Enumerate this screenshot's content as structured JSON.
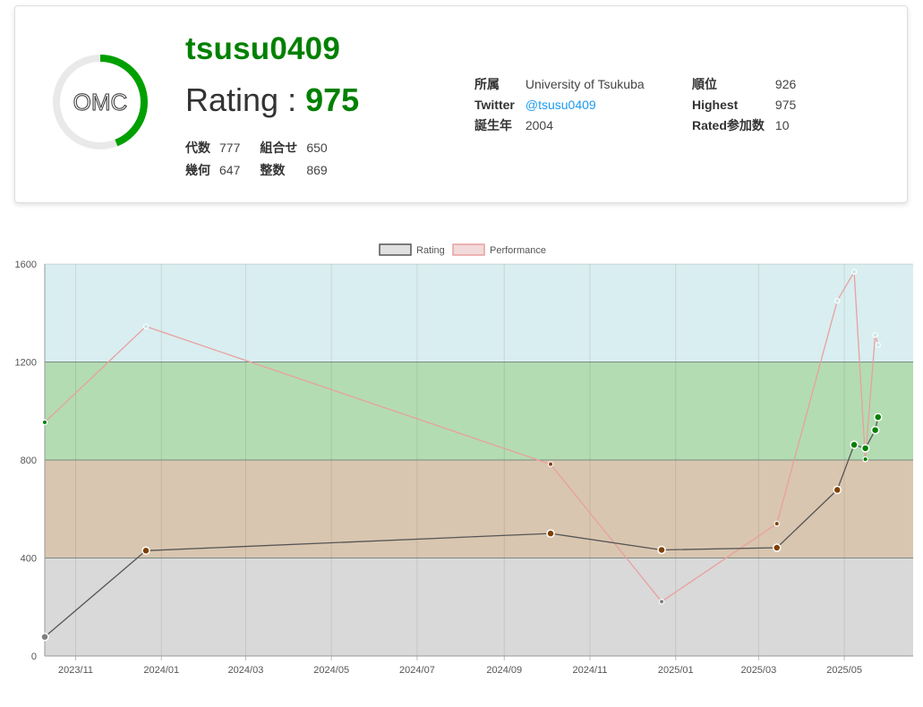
{
  "profile": {
    "username": "tsusu0409",
    "rating_label": "Rating : ",
    "rating_value": "975",
    "logo_text": "OMC",
    "ring_progress": 0.44,
    "ring_color": "#00a000",
    "name_color": "#008000",
    "scores": [
      {
        "label": "代数",
        "value": "777"
      },
      {
        "label": "組合せ",
        "value": "650"
      },
      {
        "label": "幾何",
        "value": "647"
      },
      {
        "label": "整数",
        "value": "869"
      }
    ],
    "info": {
      "affiliation_label": "所属",
      "affiliation": "University of Tsukuba",
      "twitter_label": "Twitter",
      "twitter": "@tsusu0409",
      "birth_label": "誕生年",
      "birth": "2004",
      "rank_label": "順位",
      "rank": "926",
      "highest_label": "Highest",
      "highest": "975",
      "rated_label": "Rated参加数",
      "rated": "10"
    }
  },
  "chart_data": {
    "type": "line",
    "legend": {
      "position": "top",
      "items": [
        "Rating",
        "Performance"
      ]
    },
    "ylim": [
      0,
      1600
    ],
    "yticks": [
      0,
      400,
      800,
      1200,
      1600
    ],
    "xlim": [
      "2023-10-10",
      "2025-06-19"
    ],
    "xticks": [
      "2023/11",
      "2024/01",
      "2024/03",
      "2024/05",
      "2024/07",
      "2024/09",
      "2024/11",
      "2025/01",
      "2025/03",
      "2025/05"
    ],
    "bands": [
      {
        "from": 0,
        "to": 400,
        "color": "#d9d9d9"
      },
      {
        "from": 400,
        "to": 800,
        "color": "#d9c6b0"
      },
      {
        "from": 800,
        "to": 1200,
        "color": "#b3dcb2"
      },
      {
        "from": 1200,
        "to": 1600,
        "color": "#d9eef0"
      }
    ],
    "series": [
      {
        "name": "Rating",
        "line_color": "#555555",
        "x": [
          "2023-10-10",
          "2023-12-21",
          "2024-10-04",
          "2024-12-22",
          "2025-03-14",
          "2025-04-26",
          "2025-05-08",
          "2025-05-16",
          "2025-05-23",
          "2025-05-25"
        ],
        "y": [
          78,
          430,
          500,
          433,
          442,
          678,
          862,
          848,
          922,
          975
        ]
      },
      {
        "name": "Performance",
        "line_color": "#e8a0a0",
        "x": [
          "2023-10-10",
          "2023-12-21",
          "2024-10-04",
          "2024-12-22",
          "2025-03-14",
          "2025-04-26",
          "2025-05-08",
          "2025-05-16",
          "2025-05-23",
          "2025-05-25"
        ],
        "y": [
          954,
          1345,
          783,
          222,
          540,
          1450,
          1568,
          803,
          1310,
          1270
        ]
      }
    ]
  }
}
